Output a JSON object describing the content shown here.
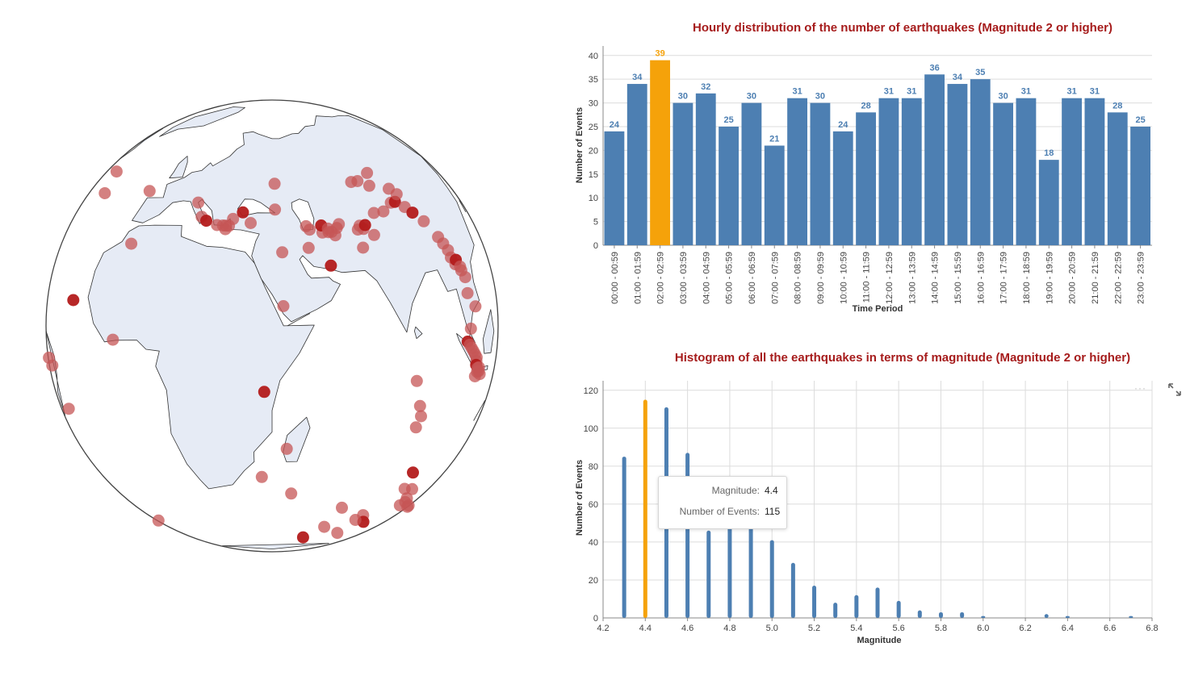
{
  "colors": {
    "bar": "#4d7fb2",
    "highlight": "#f5a20a",
    "title": "#a61c1c",
    "ocean": "#ffffff",
    "land": "#e6ebf5",
    "quake_light": "#c55555",
    "quake_dark": "#b31b1b"
  },
  "globe": {
    "description_icon": "globe-orthographic-map",
    "points": [
      [
        -130,
        57
      ],
      [
        -118,
        52
      ],
      [
        -97,
        52
      ],
      [
        -66,
        45
      ],
      [
        -42,
        46
      ],
      [
        -35,
        40
      ],
      [
        -10,
        45
      ],
      [
        -24,
        12
      ],
      [
        -39,
        -8
      ],
      [
        -44,
        -7
      ],
      [
        -31,
        -18
      ],
      [
        -5,
        5
      ],
      [
        -24,
        -65
      ],
      [
        -24,
        -75
      ],
      [
        -24,
        -77
      ],
      [
        -24,
        -76
      ],
      [
        -24,
        -74
      ],
      [
        -24,
        -73
      ],
      [
        -24,
        -71
      ],
      [
        -24,
        -70
      ],
      [
        -24,
        -69
      ],
      [
        -24,
        -72
      ],
      [
        -24,
        -56
      ],
      [
        -44,
        -48
      ],
      [
        -52,
        -50
      ],
      [
        -6,
        30
      ],
      [
        13,
        44
      ],
      [
        16,
        40
      ],
      [
        18,
        39
      ],
      [
        22,
        38
      ],
      [
        25,
        37
      ],
      [
        25,
        38
      ],
      [
        24,
        38
      ],
      [
        26,
        38
      ],
      [
        27,
        40
      ],
      [
        30,
        42
      ],
      [
        33,
        39
      ],
      [
        41,
        51
      ],
      [
        41,
        43
      ],
      [
        43,
        31
      ],
      [
        43,
        17
      ],
      [
        51,
        32
      ],
      [
        57,
        27
      ],
      [
        51,
        38
      ],
      [
        52,
        37
      ],
      [
        59,
        36
      ],
      [
        60,
        35
      ],
      [
        61,
        37
      ],
      [
        56,
        36
      ],
      [
        56,
        38
      ],
      [
        58,
        37
      ],
      [
        58,
        36
      ],
      [
        62,
        38
      ],
      [
        68,
        36
      ],
      [
        69,
        37
      ],
      [
        70,
        36
      ],
      [
        71,
        37
      ],
      [
        73,
        34
      ],
      [
        68,
        31
      ],
      [
        76,
        40
      ],
      [
        80,
        40
      ],
      [
        85,
        42
      ],
      [
        80,
        48
      ],
      [
        87,
        42
      ],
      [
        76,
        50
      ],
      [
        83,
        52
      ],
      [
        73,
        50
      ],
      [
        88,
        46
      ],
      [
        90,
        44
      ],
      [
        90,
        40
      ],
      [
        92,
        38
      ],
      [
        95,
        35
      ],
      [
        98,
        30
      ],
      [
        99,
        28
      ],
      [
        100,
        26
      ],
      [
        100,
        24
      ],
      [
        101,
        22
      ],
      [
        102,
        23
      ],
      [
        103,
        21
      ],
      [
        103,
        20
      ],
      [
        104,
        18
      ],
      [
        103,
        14
      ],
      [
        106,
        10
      ],
      [
        102,
        5
      ],
      [
        100,
        2
      ],
      [
        101,
        1
      ],
      [
        102,
        0
      ],
      [
        103,
        -1
      ],
      [
        104,
        -2
      ],
      [
        105,
        -3
      ],
      [
        105,
        -4
      ],
      [
        105,
        -5
      ],
      [
        106,
        -6
      ],
      [
        107,
        -7
      ],
      [
        105,
        -8
      ],
      [
        106,
        -7
      ],
      [
        107,
        -6
      ],
      [
        108,
        -8
      ],
      [
        38,
        -5
      ],
      [
        44,
        -21
      ],
      [
        37,
        -30
      ],
      [
        80,
        -5
      ],
      [
        82,
        -12
      ],
      [
        83,
        -15
      ],
      [
        82,
        -18
      ],
      [
        88,
        -33
      ],
      [
        94,
        -40
      ],
      [
        96,
        -47
      ],
      [
        98,
        -46
      ],
      [
        110,
        -50
      ],
      [
        112,
        -51
      ],
      [
        77,
        -48
      ],
      [
        81,
        -52
      ],
      [
        89,
        -39
      ],
      [
        96,
        -44
      ],
      [
        62,
        -52
      ],
      [
        72,
        -57
      ],
      [
        75,
        -50
      ],
      [
        65,
        -43
      ],
      [
        55,
        -58
      ],
      [
        46,
        -36
      ]
    ]
  },
  "charts": {
    "hourly": {
      "chart_data": {
        "type": "bar",
        "title": "Hourly distribution of the number of earthquakes (Magnitude 2 or higher)",
        "xlabel": "Time Period",
        "ylabel": "Number of Events",
        "ylim": [
          0,
          42
        ],
        "yticks": [
          "0",
          "5",
          "10",
          "15",
          "20",
          "25",
          "30",
          "35",
          "40"
        ],
        "categories": [
          "00:00 - 00:59",
          "01:00 - 01:59",
          "02:00 - 02:59",
          "03:00 - 03:59",
          "04:00 - 04:59",
          "05:00 - 05:59",
          "06:00 - 06:59",
          "07:00 - 07:59",
          "08:00 - 08:59",
          "09:00 - 09:59",
          "10:00 - 10:59",
          "11:00 - 11:59",
          "12:00 - 12:59",
          "13:00 - 13:59",
          "14:00 - 14:59",
          "15:00 - 15:59",
          "16:00 - 16:59",
          "17:00 - 17:59",
          "18:00 - 18:59",
          "19:00 - 19:59",
          "20:00 - 20:59",
          "21:00 - 21:59",
          "22:00 - 22:59",
          "23:00 - 23:59"
        ],
        "values": [
          24,
          34,
          39,
          30,
          32,
          25,
          30,
          21,
          31,
          30,
          24,
          28,
          31,
          31,
          36,
          34,
          35,
          30,
          31,
          18,
          31,
          31,
          28,
          25
        ],
        "highlight_index": 2,
        "grid": true
      }
    },
    "magnitude": {
      "chart_data": {
        "type": "bar",
        "title": "Histogram of all the earthquakes in terms of magnitude (Magnitude 2 or higher)",
        "xlabel": "Magnitude",
        "ylabel": "Number of Events",
        "xlim": [
          4.2,
          6.8
        ],
        "ylim": [
          0,
          125
        ],
        "xticks": [
          "4.2",
          "4.4",
          "4.6",
          "4.8",
          "5.0",
          "5.2",
          "5.4",
          "5.6",
          "5.8",
          "6.0",
          "6.2",
          "6.4",
          "6.6",
          "6.8"
        ],
        "yticks": [
          "0",
          "20",
          "40",
          "60",
          "80",
          "100",
          "120"
        ],
        "x": [
          4.3,
          4.4,
          4.5,
          4.6,
          4.7,
          4.8,
          4.9,
          5.0,
          5.1,
          5.2,
          5.3,
          5.4,
          5.5,
          5.6,
          5.7,
          5.8,
          5.9,
          6.0,
          6.3,
          6.4,
          6.7
        ],
        "values": [
          85,
          115,
          111,
          87,
          46,
          60,
          62,
          41,
          29,
          17,
          8,
          12,
          16,
          9,
          4,
          3,
          3,
          1,
          2,
          1,
          1
        ],
        "highlight_x": 4.4,
        "grid": true
      }
    }
  },
  "tooltip": {
    "label1": "Magnitude:",
    "value1": "4.4",
    "label2": "Number of Events:",
    "value2": "115"
  },
  "controls": {
    "more_icon": "more-horizontal-icon",
    "more_text": "···",
    "expand_icon": "expand-icon"
  }
}
